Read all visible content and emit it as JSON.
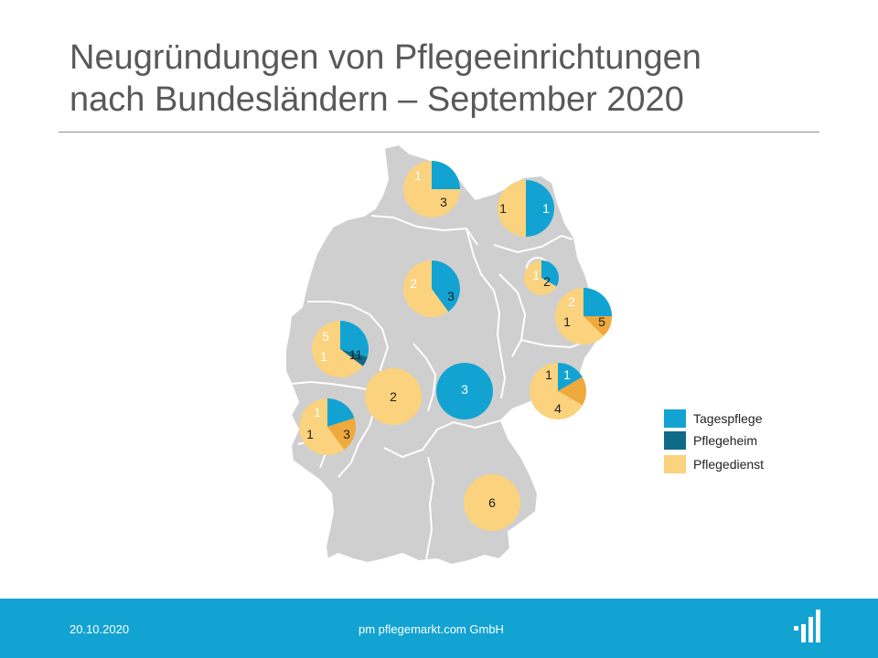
{
  "title_line1": "Neugründungen von Pflegeeinrichtungen",
  "title_line2": "nach Bundesländern – September 2020",
  "colors": {
    "tagespflege": "#12a3d2",
    "pflegeheim": "#0e6a86",
    "pflegedienst": "#fbd27d",
    "pflegedienst_alt": "#f0a93c",
    "map_fill": "#cfcfcf",
    "map_border": "#ffffff",
    "footer": "#12a3d2"
  },
  "legend": {
    "tagespflege": "Tagespflege",
    "pflegeheim": "Pflegeheim",
    "pflegedienst": "Pflegedienst"
  },
  "chart_data": {
    "type": "pie",
    "categories": [
      "Tagespflege",
      "Pflegeheim",
      "Pflegedienst"
    ],
    "states": [
      {
        "id": "schleswig-holstein",
        "values": {
          "Tagespflege": 1,
          "Pflegedienst": 3
        }
      },
      {
        "id": "mecklenburg-vorpommern",
        "values": {
          "Tagespflege": 1,
          "Pflegedienst": 1
        }
      },
      {
        "id": "berlin",
        "values": {
          "Tagespflege": 1,
          "Pflegedienst": 2
        }
      },
      {
        "id": "brandenburg",
        "values": {
          "Tagespflege": 2,
          "Pflegedienst": [
            1,
            5
          ]
        }
      },
      {
        "id": "niedersachsen",
        "values": {
          "Tagespflege": 2,
          "Pflegedienst": 3
        }
      },
      {
        "id": "nordrhein-westfalen",
        "values": {
          "Tagespflege": 5,
          "Pflegeheim": 1,
          "Pflegedienst": 11
        }
      },
      {
        "id": "sachsen",
        "values": {
          "Tagespflege": 1,
          "Pflegedienst": [
            1,
            4
          ]
        }
      },
      {
        "id": "hessen",
        "values": {
          "Pflegedienst": 2
        }
      },
      {
        "id": "thueringen",
        "values": {
          "Tagespflege": 3
        }
      },
      {
        "id": "rheinland-pfalz",
        "values": {
          "Tagespflege": 1,
          "Pflegedienst": [
            1,
            3
          ]
        }
      },
      {
        "id": "bayern",
        "values": {
          "Pflegedienst": 6
        }
      }
    ]
  },
  "footer": {
    "date": "20.10.2020",
    "company": "pm pflegemarkt.com GmbH"
  }
}
